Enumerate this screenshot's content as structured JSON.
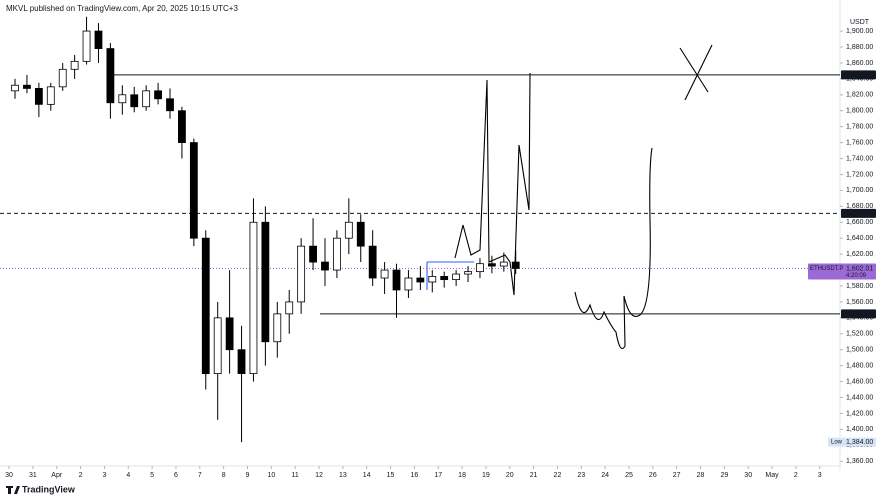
{
  "header": {
    "title": "MKVL published on TradingView.com, Apr 20, 2025 10:15 UTC+3"
  },
  "footer": {
    "brand": "TradingView"
  },
  "chart_data": {
    "type": "candlestick",
    "axis_unit": "USDT",
    "series": [
      {
        "name": "ETHUSDT.P",
        "x": [
          0.25,
          0.75,
          1.25,
          1.75,
          2.25,
          2.75,
          3.25,
          3.75,
          4.25,
          4.75,
          5.25,
          5.75,
          6.25,
          6.75,
          7.25,
          7.75,
          8.25,
          8.75,
          9.25,
          9.75,
          10.25,
          10.75,
          11.25,
          11.75,
          12.25,
          12.75,
          13.25,
          13.75,
          14.25,
          14.75,
          15.25,
          15.75,
          16.25,
          16.75,
          17.25,
          17.75,
          18.25,
          18.75,
          19.25,
          19.75,
          20.25,
          20.75,
          21.25
        ],
        "open": [
          1825,
          1832,
          1828,
          1808,
          1830,
          1852,
          1862,
          1900,
          1878,
          1810,
          1820,
          1805,
          1825,
          1815,
          1800,
          1760,
          1640,
          1470,
          1540,
          1500,
          1470,
          1660,
          1510,
          1545,
          1560,
          1630,
          1610,
          1600,
          1640,
          1660,
          1630,
          1590,
          1600,
          1575,
          1590,
          1585,
          1592,
          1588,
          1595,
          1598,
          1608,
          1605,
          1610
        ],
        "high": [
          1840,
          1845,
          1835,
          1835,
          1860,
          1870,
          1918,
          1910,
          1885,
          1832,
          1830,
          1832,
          1835,
          1828,
          1805,
          1765,
          1650,
          1560,
          1600,
          1530,
          1690,
          1680,
          1560,
          1575,
          1640,
          1665,
          1640,
          1650,
          1690,
          1670,
          1650,
          1610,
          1608,
          1600,
          1605,
          1600,
          1598,
          1600,
          1605,
          1615,
          1618,
          1622,
          1625
        ],
        "low": [
          1815,
          1822,
          1792,
          1800,
          1825,
          1840,
          1858,
          1860,
          1790,
          1795,
          1798,
          1800,
          1808,
          1790,
          1740,
          1630,
          1450,
          1412,
          1470,
          1384,
          1460,
          1480,
          1490,
          1520,
          1545,
          1600,
          1580,
          1590,
          1620,
          1610,
          1580,
          1570,
          1540,
          1565,
          1575,
          1572,
          1578,
          1580,
          1585,
          1590,
          1596,
          1598,
          1595
        ],
        "close": [
          1832,
          1828,
          1808,
          1830,
          1852,
          1862,
          1900,
          1878,
          1810,
          1820,
          1805,
          1825,
          1815,
          1800,
          1760,
          1640,
          1470,
          1540,
          1500,
          1470,
          1660,
          1510,
          1545,
          1560,
          1630,
          1610,
          1600,
          1640,
          1660,
          1630,
          1590,
          1600,
          1575,
          1590,
          1585,
          1592,
          1588,
          1595,
          1598,
          1608,
          1605,
          1610,
          1602.01
        ]
      }
    ],
    "price_lines": [
      {
        "value": 1844.97,
        "label": "1,844.97",
        "style": "solid",
        "color": "#131722"
      },
      {
        "value": 1671.21,
        "label": "1,671.21",
        "style": "dashed",
        "color": "#131722"
      },
      {
        "value": 1545.06,
        "label": "1,545.06",
        "style": "solid",
        "color": "#131722"
      },
      {
        "value": 1602.01,
        "label": "1,602.01",
        "style": "dotted",
        "color": "#9c6ad6"
      },
      {
        "value": 1384,
        "label": "1,384.00",
        "style": "none",
        "color": "#d6e4f5"
      }
    ],
    "last_price_countdown": "4:20:09",
    "low_text": "Low",
    "xlim": [
      -0.38,
      34.85
    ],
    "ylim": [
      1349,
      1939
    ],
    "xticks": [
      {
        "value": 0,
        "label": "30"
      },
      {
        "value": 1,
        "label": "31"
      },
      {
        "value": 2,
        "label": "Apr"
      },
      {
        "value": 3,
        "label": "2"
      },
      {
        "value": 4,
        "label": "3"
      },
      {
        "value": 5,
        "label": "4"
      },
      {
        "value": 6,
        "label": "5"
      },
      {
        "value": 7,
        "label": "6"
      },
      {
        "value": 8,
        "label": "7"
      },
      {
        "value": 9,
        "label": "8"
      },
      {
        "value": 10,
        "label": "9"
      },
      {
        "value": 11,
        "label": "10"
      },
      {
        "value": 12,
        "label": "11"
      },
      {
        "value": 13,
        "label": "12"
      },
      {
        "value": 14,
        "label": "13"
      },
      {
        "value": 15,
        "label": "14"
      },
      {
        "value": 16,
        "label": "15"
      },
      {
        "value": 17,
        "label": "16"
      },
      {
        "value": 18,
        "label": "17"
      },
      {
        "value": 19,
        "label": "18"
      },
      {
        "value": 20,
        "label": "19"
      },
      {
        "value": 21,
        "label": "20"
      },
      {
        "value": 22,
        "label": "21"
      },
      {
        "value": 23,
        "label": "22"
      },
      {
        "value": 24,
        "label": "23"
      },
      {
        "value": 25,
        "label": "24"
      },
      {
        "value": 26,
        "label": "25"
      },
      {
        "value": 27,
        "label": "26"
      },
      {
        "value": 28,
        "label": "27"
      },
      {
        "value": 29,
        "label": "28"
      },
      {
        "value": 30,
        "label": "29"
      },
      {
        "value": 31,
        "label": "30"
      },
      {
        "value": 32,
        "label": "May"
      },
      {
        "value": 33,
        "label": "2"
      },
      {
        "value": 34,
        "label": "3"
      }
    ],
    "yticks": [
      {
        "value": 1360,
        "label": "1,360.00"
      },
      {
        "value": 1380,
        "label": "1,380.00"
      },
      {
        "value": 1400,
        "label": "1,400.00"
      },
      {
        "value": 1420,
        "label": "1,420.00"
      },
      {
        "value": 1440,
        "label": "1,440.00"
      },
      {
        "value": 1460,
        "label": "1,460.00"
      },
      {
        "value": 1480,
        "label": "1,480.00"
      },
      {
        "value": 1500,
        "label": "1,500.00"
      },
      {
        "value": 1520,
        "label": "1,520.00"
      },
      {
        "value": 1540,
        "label": "1,540.00"
      },
      {
        "value": 1560,
        "label": "1,560.00"
      },
      {
        "value": 1580,
        "label": "1,580.00"
      },
      {
        "value": 1600,
        "label": "1,600.00"
      },
      {
        "value": 1620,
        "label": "1,620.00"
      },
      {
        "value": 1640,
        "label": "1,640.00"
      },
      {
        "value": 1660,
        "label": "1,660.00"
      },
      {
        "value": 1680,
        "label": "1,680.00"
      },
      {
        "value": 1700,
        "label": "1,700.00"
      },
      {
        "value": 1720,
        "label": "1,720.00"
      },
      {
        "value": 1740,
        "label": "1,740.00"
      },
      {
        "value": 1760,
        "label": "1,760.00"
      },
      {
        "value": 1780,
        "label": "1,780.00"
      },
      {
        "value": 1800,
        "label": "1,800.00"
      },
      {
        "value": 1820,
        "label": "1,820.00"
      },
      {
        "value": 1840,
        "label": "1,840.00"
      },
      {
        "value": 1860,
        "label": "1,860.00"
      },
      {
        "value": 1880,
        "label": "1,880.00"
      },
      {
        "value": 1900,
        "label": "1,900.00"
      }
    ],
    "up_color": "#ffffff",
    "down_color": "#000000",
    "grid": false
  }
}
